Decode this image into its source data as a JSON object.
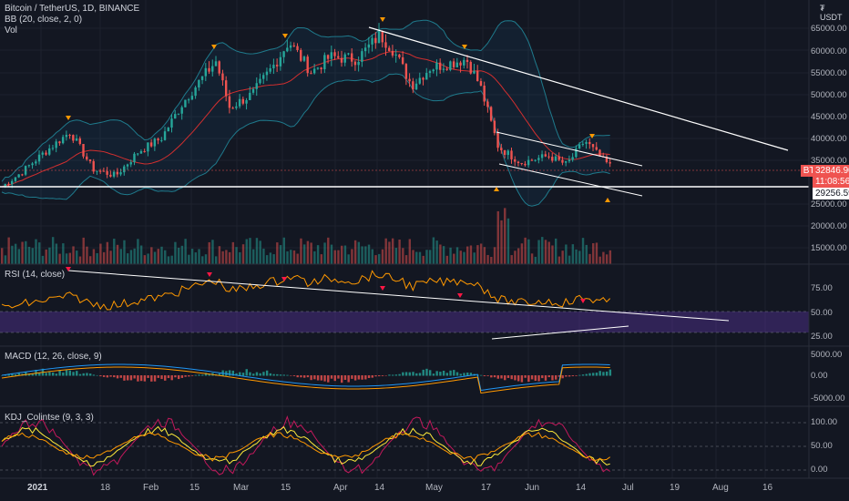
{
  "legends": {
    "symbol": "Bitcoin / TetherUS, 1D, BINANCE",
    "bb": "BB (20, close, 2, 0)",
    "vol": "Vol",
    "rsi": "RSI (14, close)",
    "macd": "MACD (12, 26, close, 9)",
    "kdj": "KDJ_Colintse (9, 3, 3)"
  },
  "currency_label": "USDT",
  "currency_prefix": "₮",
  "price_axis": [
    "65000.00",
    "60000.00",
    "55000.00",
    "50000.00",
    "45000.00",
    "40000.00",
    "35000.00",
    "25000.00",
    "20000.00",
    "15000.00"
  ],
  "rsi_axis": [
    "75.00",
    "50.00",
    "25.00"
  ],
  "macd_axis": [
    "5000.00",
    "0.00",
    "-5000.00"
  ],
  "kdj_axis": [
    "100.00",
    "50.00",
    "0.00"
  ],
  "x_axis": [
    "2021",
    "18",
    "Feb",
    "15",
    "Mar",
    "15",
    "Apr",
    "14",
    "May",
    "17",
    "Jun",
    "14",
    "Jul",
    "19",
    "Aug",
    "16"
  ],
  "tags": {
    "symbol": "BTCUSDT",
    "price": "32846.90",
    "countdown": "11:08:56",
    "level": "29256.59"
  },
  "colors": {
    "background": "#131722",
    "up": "#26a69a",
    "down": "#ef5350",
    "trendline": "#ffffff",
    "bb_basis": "#d32f2f",
    "bb_band": "#1f7a8c",
    "rsi": "#ff9800",
    "macd_line": "#2196f3",
    "signal": "#ff9800",
    "kdj_j": "#c2185b",
    "kdj_k": "#ffeb3b",
    "kdj_d": "#ff9800",
    "marker_top": "#ff9800",
    "marker_rsi": "#ff1744"
  }
}
